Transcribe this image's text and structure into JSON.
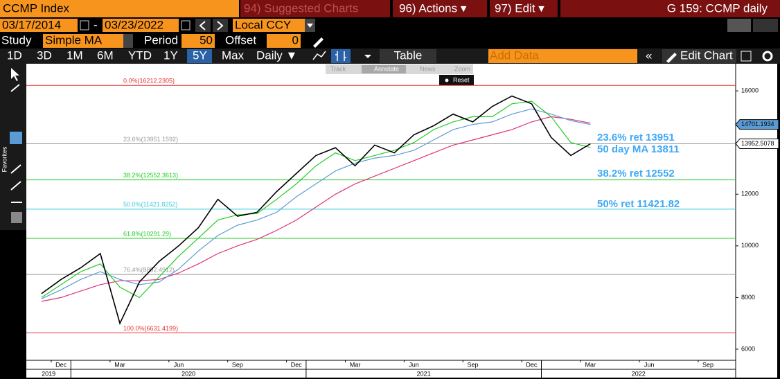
{
  "header": {
    "security": "CCMP Index",
    "menu": [
      "94) Suggested Charts",
      "96) Actions ▾",
      "97) Edit ▾"
    ],
    "chart_name": "G 159: CCMP daily"
  },
  "controls": {
    "start_date": "03/17/2014",
    "separator": "-",
    "end_date": "03/23/2022",
    "currency": "Local CCY",
    "study_label": "Study",
    "study": "Simple MA",
    "period_label": "Period",
    "period": "50",
    "offset_label": "Offset",
    "offset": "0"
  },
  "toolbar": {
    "ranges": [
      "1D",
      "3D",
      "1M",
      "6M",
      "YTD",
      "1Y",
      "5Y",
      "Max"
    ],
    "frequency": "Daily ▼",
    "table": "Table",
    "add_data": "Add Data",
    "edit_chart": "Edit Chart"
  },
  "floating": {
    "tools": [
      "Track",
      "Annotate",
      "News",
      "Zoom"
    ],
    "reset": "Reset"
  },
  "sidebar": {
    "favorites": "Favorites"
  },
  "chart_data": {
    "type": "line",
    "x": [
      "2019-11",
      "2019-12",
      "2020-01",
      "2020-02",
      "2020-03",
      "2020-04",
      "2020-05",
      "2020-06",
      "2020-07",
      "2020-08",
      "2020-09",
      "2020-10",
      "2020-11",
      "2020-12",
      "2021-01",
      "2021-02",
      "2021-03",
      "2021-04",
      "2021-05",
      "2021-06",
      "2021-07",
      "2021-08",
      "2021-09",
      "2021-10",
      "2021-11",
      "2021-12",
      "2022-01",
      "2022-02",
      "2022-03"
    ],
    "series": [
      {
        "color": "#000000",
        "values": [
          8150,
          8700,
          9150,
          9700,
          7000,
          8600,
          9400,
          10000,
          10700,
          11800,
          11150,
          11300,
          12100,
          12800,
          13500,
          13800,
          13100,
          13900,
          13600,
          14300,
          14650,
          15100,
          14800,
          15400,
          15800,
          15500,
          14200,
          13500,
          13950
        ]
      },
      {
        "color": "#22cc22",
        "values": [
          8000,
          8500,
          9000,
          9300,
          8400,
          8000,
          8800,
          9600,
          10300,
          11000,
          11200,
          11250,
          11800,
          12400,
          13100,
          13600,
          13300,
          13500,
          13700,
          14000,
          14500,
          14800,
          15000,
          15000,
          15500,
          15600,
          15000,
          14000,
          13811
        ]
      },
      {
        "color": "#5b9bd5",
        "values": [
          7950,
          8300,
          8700,
          9000,
          8700,
          8500,
          8600,
          9100,
          9800,
          10400,
          10800,
          11000,
          11300,
          11900,
          12400,
          12900,
          13200,
          13400,
          13500,
          13700,
          14100,
          14500,
          14700,
          14800,
          15100,
          15300,
          15100,
          14850,
          14701
        ]
      },
      {
        "color": "#e0307a",
        "values": [
          7850,
          8000,
          8250,
          8500,
          8650,
          8650,
          8700,
          8950,
          9300,
          9700,
          10000,
          10250,
          10600,
          11000,
          11500,
          12000,
          12400,
          12700,
          13000,
          13300,
          13600,
          13900,
          14100,
          14300,
          14500,
          14800,
          15000,
          14900,
          14750
        ]
      }
    ],
    "ylim": [
      5570,
      17050
    ],
    "yticks": [
      6000,
      8000,
      10000,
      12000,
      14000,
      16000
    ],
    "grid": false,
    "xticks": [
      {
        "value": "2019-12",
        "label": "Dec"
      },
      {
        "value": "2020-03",
        "label": "Mar"
      },
      {
        "value": "2020-06",
        "label": "Jun"
      },
      {
        "value": "2020-09",
        "label": "Sep"
      },
      {
        "value": "2020-12",
        "label": "Dec"
      },
      {
        "value": "2021-03",
        "label": "Mar"
      },
      {
        "value": "2021-06",
        "label": "Jun"
      },
      {
        "value": "2021-09",
        "label": "Sep"
      },
      {
        "value": "2021-12",
        "label": "Dec"
      },
      {
        "value": "2022-03",
        "label": "Mar"
      },
      {
        "value": "2022-06",
        "label": "Jun"
      },
      {
        "value": "2022-09",
        "label": "Sep"
      }
    ],
    "year_ticks": [
      2019,
      2020,
      2021,
      2022
    ],
    "fib_levels": [
      {
        "label": "0.0%(16212.2305)",
        "value": 16212.2305,
        "color": "#e83030"
      },
      {
        "label": "23.6%(13951.1592)",
        "value": 13951.1592,
        "color": "#999999"
      },
      {
        "label": "38.2%(12552.3613)",
        "value": 12552.3613,
        "color": "#22cc22"
      },
      {
        "label": "50.0%(11421.8252)",
        "value": 11421.8252,
        "color": "#33ccdd"
      },
      {
        "label": "61.8%(10291.29)",
        "value": 10291.29,
        "color": "#22cc22"
      },
      {
        "label": "76.4%(8892.4912)",
        "value": 8892.4912,
        "color": "#999999"
      },
      {
        "label": "100.0%(6631.4199)",
        "value": 6631.4199,
        "color": "#e83030"
      }
    ],
    "annotations": [
      "23.6% ret 13951",
      "50 day MA 13811",
      "38.2% ret 12552",
      "50% ret 11421.82"
    ],
    "price_flags": [
      {
        "value": 14701.1934,
        "color": "#5b9bd5"
      },
      {
        "value": 13952.5078,
        "color": "#ffffff"
      }
    ]
  }
}
